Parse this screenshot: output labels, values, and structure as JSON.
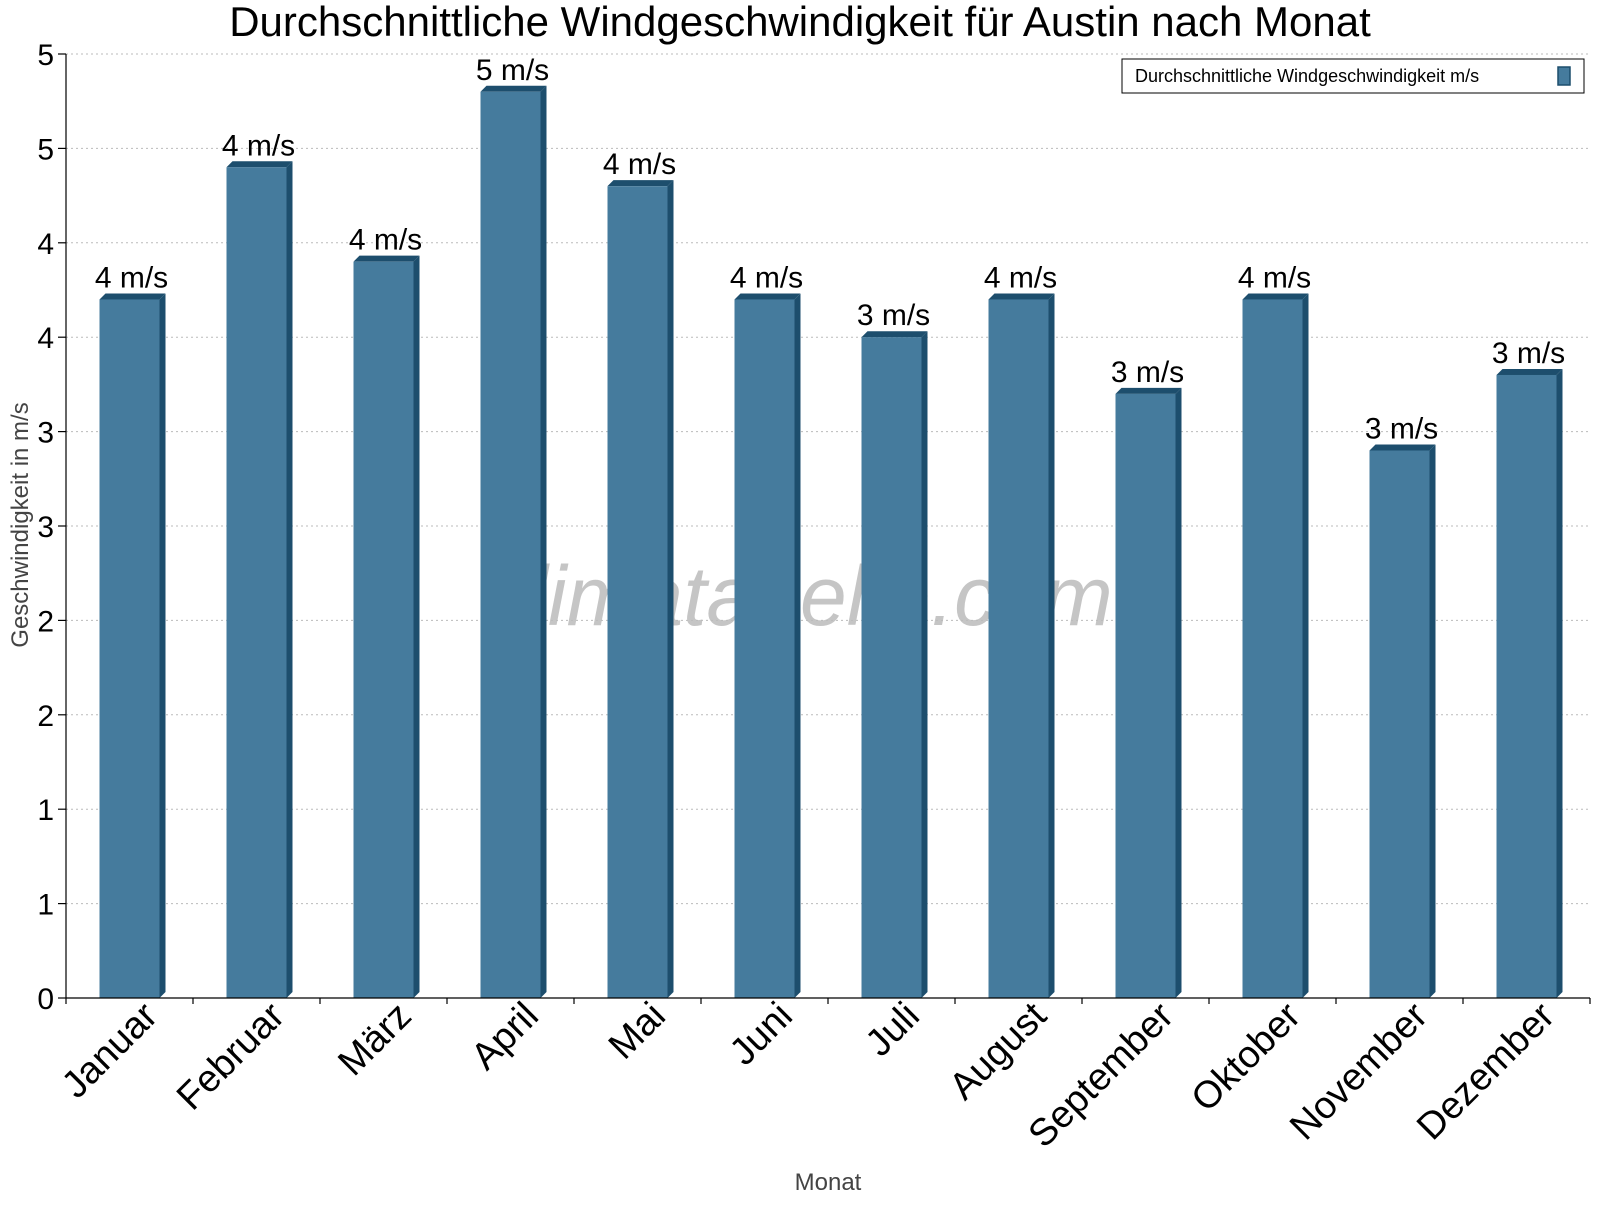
{
  "chart_data": {
    "type": "bar",
    "title": "Durchschnittliche Windgeschwindigkeit für Austin nach Monat",
    "xlabel": "Monat",
    "ylabel": "Geschwindigkeit in m/s",
    "categories": [
      "Januar",
      "Februar",
      "März",
      "April",
      "Mai",
      "Juni",
      "Juli",
      "August",
      "September",
      "Oktober",
      "November",
      "Dezember"
    ],
    "series": [
      {
        "name": "Durchschnittliche Windgeschwindigkeit m/s",
        "values": [
          3.7,
          4.4,
          3.9,
          4.8,
          4.3,
          3.7,
          3.5,
          3.7,
          3.2,
          3.7,
          2.9,
          3.3
        ],
        "labels": [
          "4 m/s",
          "4 m/s",
          "4 m/s",
          "5 m/s",
          "4 m/s",
          "4 m/s",
          "3 m/s",
          "4 m/s",
          "3 m/s",
          "4 m/s",
          "3 m/s",
          "3 m/s"
        ]
      }
    ],
    "ylim": [
      0,
      5
    ],
    "yticks": [
      0,
      0.5,
      1,
      1.5,
      2,
      2.5,
      3,
      3.5,
      4,
      4.5,
      5
    ],
    "ytick_labels": [
      "0",
      "1",
      "1",
      "2",
      "2",
      "3",
      "3",
      "4",
      "4",
      "5",
      "5"
    ],
    "grid": true,
    "legend": "top-right",
    "colors": {
      "bar": "#457b9d",
      "bar_side": "#1d4e6d",
      "grid": "#bbbbbb",
      "axis": "#000000",
      "watermark": "#bbbbbb"
    }
  },
  "watermark": "klimatabelle.com"
}
